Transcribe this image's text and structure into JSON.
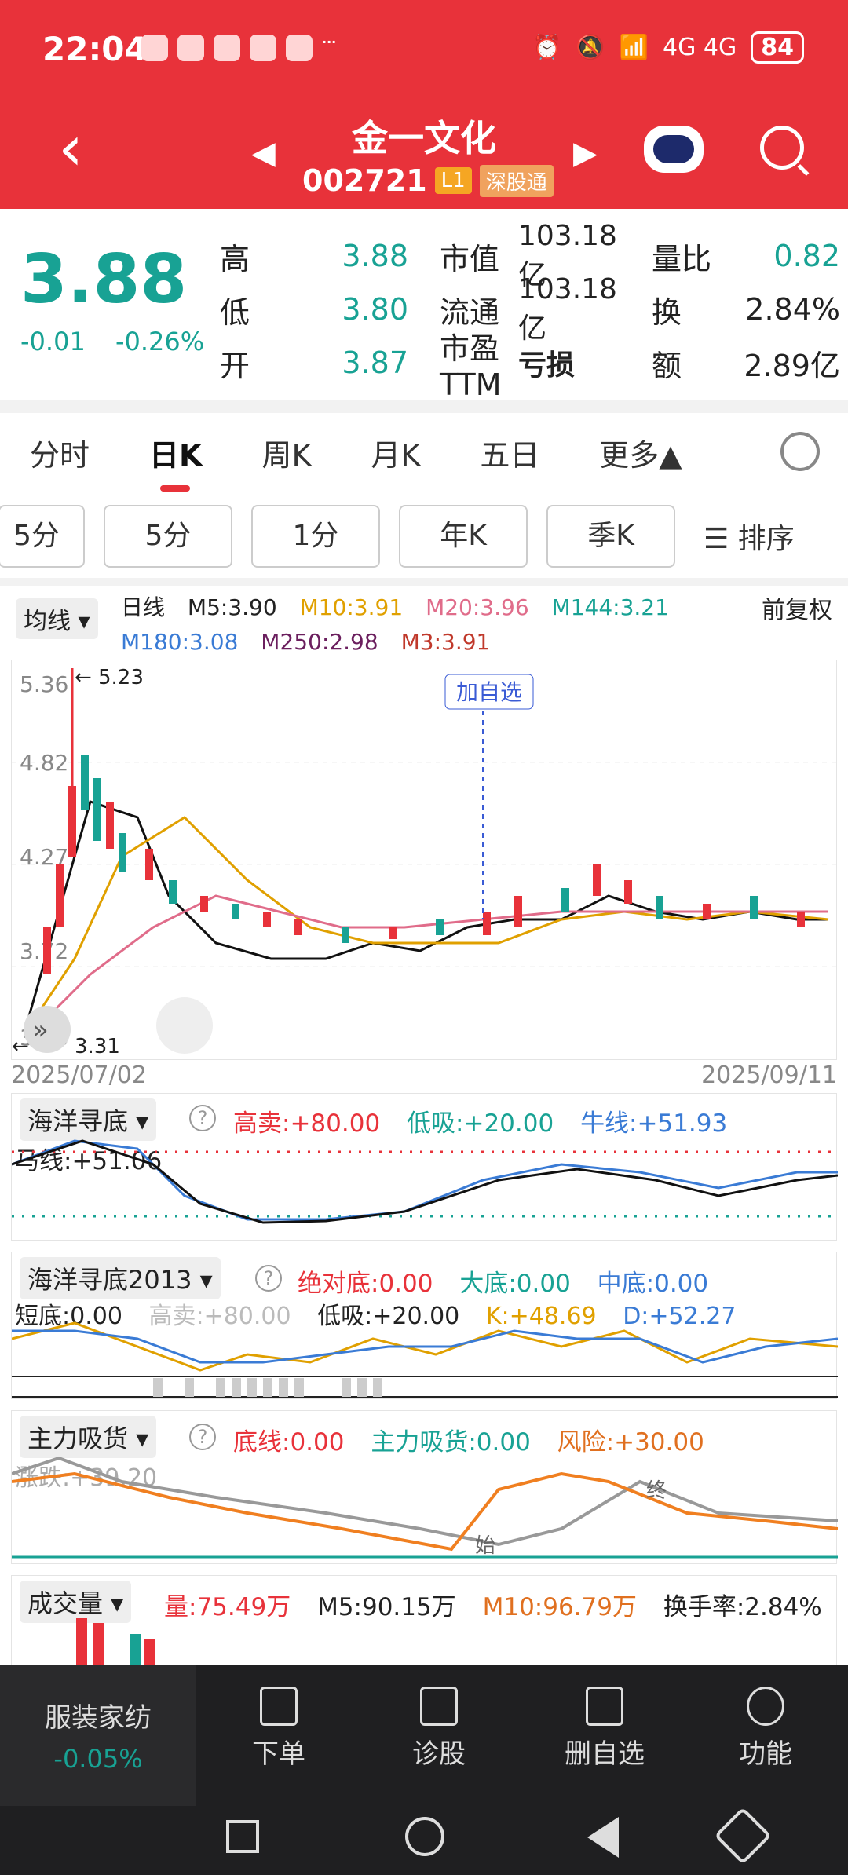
{
  "status": {
    "time": "22:04",
    "signal": "4G 4G",
    "battery": "84",
    "more": "···"
  },
  "stock": {
    "name": "金一文化",
    "code": "002721",
    "level": "L1",
    "tag": "深股通"
  },
  "quote": {
    "price": "3.88",
    "change": "-0.01",
    "change_pct": "-0.26%",
    "rows": [
      {
        "l1": "高",
        "v1": "3.88",
        "l2": "市值",
        "v2": "103.18亿",
        "l3": "量比",
        "v3": "0.82"
      },
      {
        "l1": "低",
        "v1": "3.80",
        "l2": "流通",
        "v2": "103.18亿",
        "l3": "换",
        "v3": "2.84%"
      },
      {
        "l1": "开",
        "v1": "3.87",
        "l2": "市盈TTM",
        "v2": "亏损",
        "l3": "额",
        "v3": "2.89亿"
      }
    ]
  },
  "tabs": [
    "分时",
    "日K",
    "周K",
    "月K",
    "五日",
    "更多▲"
  ],
  "periods": [
    "5分",
    "5分",
    "1分",
    "年K",
    "季K"
  ],
  "sort_label": "☰ 排序",
  "ma": {
    "select": "均线 ▾",
    "items": [
      "日线",
      "M5:3.90",
      "M10:3.91",
      "M20:3.96",
      "M144:3.21",
      "M180:3.08",
      "M250:2.98",
      "M3:3.91"
    ],
    "fq": "前复权"
  },
  "kchart": {
    "y_labels": [
      "5.36",
      "4.82",
      "4.27",
      "3.72",
      "3.18"
    ],
    "high_mark": "5.23",
    "low_mark": "3.31",
    "add_watch": "加自选",
    "date_start": "2025/07/02",
    "date_end": "2025/09/11",
    "collapse": "»"
  },
  "chart_data": {
    "type": "candlestick",
    "title": "金一文化 日K",
    "x_range": [
      "2025/07/02",
      "2025/09/11"
    ],
    "ylim": [
      3.18,
      5.36
    ],
    "high_marker": 5.23,
    "low_marker": 3.31,
    "moving_averages": {
      "M5": 3.9,
      "M10": 3.91,
      "M20": 3.96,
      "M144": 3.21,
      "M180": 3.08,
      "M250": 2.98,
      "M3": 3.91
    }
  },
  "panel1": {
    "title": "海洋寻底 ▾",
    "items": [
      "高卖:+80.00",
      "低吸:+20.00",
      "牛线:+51.93"
    ],
    "line2": "马线:+51.06"
  },
  "panel2": {
    "title": "海洋寻底2013 ▾",
    "items": [
      "绝对底:0.00",
      "大底:0.00",
      "中底:0.00"
    ],
    "line2": [
      "短底:0.00",
      "高卖:+80.00",
      "低吸:+20.00",
      "K:+48.69",
      "D:+52.27"
    ]
  },
  "panel3": {
    "title": "主力吸货 ▾",
    "items": [
      "底线:0.00",
      "主力吸货:0.00",
      "风险:+30.00"
    ],
    "line2": "涨跌:+39.20",
    "start": "始",
    "end": "终"
  },
  "panel4": {
    "title": "成交量 ▾",
    "items": [
      "量:75.49万",
      "M5:90.15万",
      "M10:96.79万",
      "换手率:2.84%"
    ]
  },
  "bottom": {
    "sector_name": "服装家纺",
    "sector_chg": "-0.05%",
    "buttons": [
      "下单",
      "诊股",
      "删自选",
      "功能"
    ]
  }
}
